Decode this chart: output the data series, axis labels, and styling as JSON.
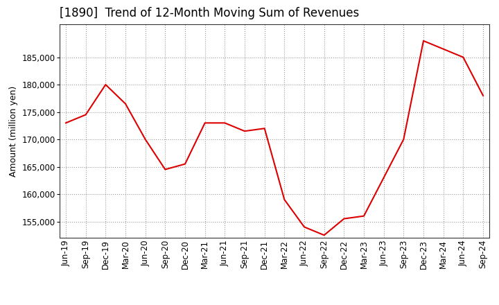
{
  "title": "[1890]  Trend of 12-Month Moving Sum of Revenues",
  "ylabel": "Amount (million yen)",
  "background_color": "#ffffff",
  "plot_bg_color": "#ffffff",
  "line_color": "#dd0000",
  "grid_color": "#999999",
  "x_labels": [
    "Jun-19",
    "Sep-19",
    "Dec-19",
    "Mar-20",
    "Jun-20",
    "Sep-20",
    "Dec-20",
    "Mar-21",
    "Jun-21",
    "Sep-21",
    "Dec-21",
    "Mar-22",
    "Jun-22",
    "Sep-22",
    "Dec-22",
    "Mar-23",
    "Jun-23",
    "Sep-23",
    "Dec-23",
    "Mar-24",
    "Jun-24",
    "Sep-24"
  ],
  "y_values": [
    173000,
    174500,
    180000,
    176500,
    170000,
    164500,
    165500,
    173000,
    173000,
    171500,
    172000,
    159000,
    154000,
    152500,
    155500,
    156000,
    163000,
    170000,
    188000,
    186500,
    185000,
    178000
  ],
  "ylim_min": 152000,
  "ylim_max": 191000,
  "yticks": [
    155000,
    160000,
    165000,
    170000,
    175000,
    180000,
    185000
  ],
  "title_fontsize": 12,
  "axis_fontsize": 9,
  "tick_fontsize": 8.5
}
